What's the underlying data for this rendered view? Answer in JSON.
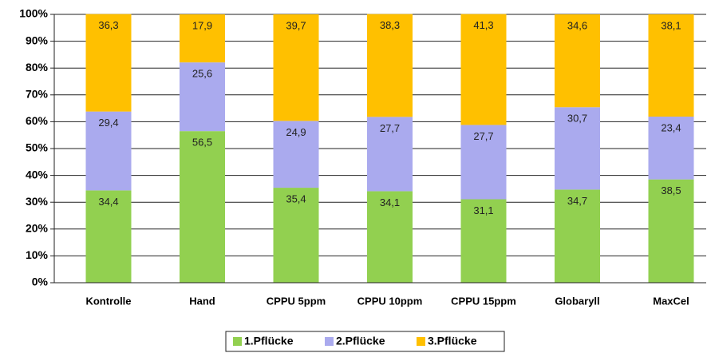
{
  "chart_data": {
    "type": "stacked_bar",
    "categories": [
      "Kontrolle",
      "Hand",
      "CPPU 5ppm",
      "CPPU 10ppm",
      "CPPU 15ppm",
      "Globaryll",
      "MaxCel"
    ],
    "series": [
      {
        "name": "1.Pflücke",
        "color": "#92d050",
        "values": [
          34.4,
          56.5,
          35.4,
          34.1,
          31.1,
          34.7,
          38.5
        ],
        "value_labels": [
          "34,4",
          "56,5",
          "35,4",
          "34,1",
          "31,1",
          "34,7",
          "38,5"
        ]
      },
      {
        "name": "2.Pflücke",
        "color": "#aaaaee",
        "values": [
          29.4,
          25.6,
          24.9,
          27.7,
          27.7,
          30.7,
          23.4
        ],
        "value_labels": [
          "29,4",
          "25,6",
          "24,9",
          "27,7",
          "27,7",
          "30,7",
          "23,4"
        ]
      },
      {
        "name": "3.Pflücke",
        "color": "#ffc000",
        "values": [
          36.3,
          17.9,
          39.7,
          38.3,
          41.3,
          34.6,
          38.1
        ],
        "value_labels": [
          "36,3",
          "17,9",
          "39,7",
          "38,3",
          "41,3",
          "34,6",
          "38,1"
        ]
      }
    ],
    "ylim": [
      0,
      100
    ],
    "yticks": [
      {
        "value": 0,
        "label": "0%"
      },
      {
        "value": 10,
        "label": "10%"
      },
      {
        "value": 20,
        "label": "20%"
      },
      {
        "value": 30,
        "label": "30%"
      },
      {
        "value": 40,
        "label": "40%"
      },
      {
        "value": 50,
        "label": "50%"
      },
      {
        "value": 60,
        "label": "60%"
      },
      {
        "value": 70,
        "label": "70%"
      },
      {
        "value": 80,
        "label": "80%"
      },
      {
        "value": 90,
        "label": "90%"
      },
      {
        "value": 100,
        "label": "100%"
      }
    ],
    "legend": "bottom"
  }
}
